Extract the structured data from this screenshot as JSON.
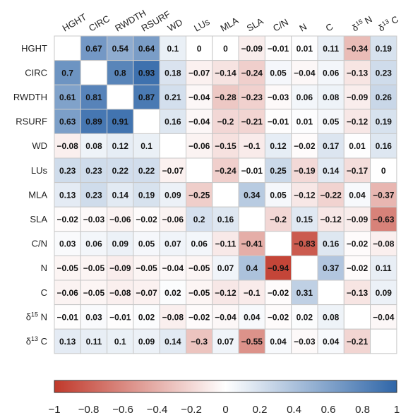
{
  "chart_data": {
    "type": "heatmap",
    "title": "",
    "variables": [
      "HGHT",
      "CIRC",
      "RWDTH",
      "RSURF",
      "WD",
      "LUs",
      "MLA",
      "SLA",
      "C/N",
      "N",
      "C",
      "δ15 N",
      "δ13 C"
    ],
    "values": [
      [
        null,
        0.67,
        0.54,
        0.64,
        0.1,
        0,
        0,
        -0.09,
        -0.01,
        0.01,
        0.11,
        -0.34,
        0.19
      ],
      [
        0.7,
        null,
        0.8,
        0.93,
        0.18,
        -0.07,
        -0.14,
        -0.24,
        0.05,
        -0.04,
        0.06,
        -0.13,
        0.23
      ],
      [
        0.61,
        0.81,
        null,
        0.87,
        0.21,
        -0.04,
        -0.28,
        -0.23,
        -0.03,
        0.06,
        0.08,
        -0.09,
        0.26
      ],
      [
        0.63,
        0.89,
        0.91,
        null,
        0.16,
        -0.04,
        -0.2,
        -0.21,
        -0.01,
        0.01,
        0.05,
        -0.12,
        0.19
      ],
      [
        -0.08,
        0.08,
        0.12,
        0.1,
        null,
        -0.06,
        -0.15,
        -0.1,
        0.12,
        -0.02,
        0.17,
        0.01,
        0.16
      ],
      [
        0.23,
        0.23,
        0.22,
        0.22,
        -0.07,
        null,
        -0.24,
        -0.01,
        0.25,
        -0.19,
        0.14,
        -0.17,
        0
      ],
      [
        0.13,
        0.23,
        0.14,
        0.19,
        0.09,
        -0.25,
        null,
        0.34,
        0.05,
        -0.12,
        -0.22,
        0.04,
        -0.37
      ],
      [
        -0.02,
        -0.03,
        -0.06,
        -0.02,
        -0.06,
        0.2,
        0.16,
        null,
        -0.2,
        0.15,
        -0.12,
        -0.09,
        -0.63
      ],
      [
        0.03,
        0.06,
        0.09,
        0.05,
        0.07,
        0.06,
        -0.11,
        -0.41,
        null,
        -0.83,
        0.16,
        -0.02,
        -0.08
      ],
      [
        -0.05,
        -0.05,
        -0.09,
        -0.05,
        -0.04,
        -0.05,
        0.07,
        0.4,
        -0.94,
        null,
        0.37,
        -0.02,
        0.11
      ],
      [
        -0.06,
        -0.05,
        -0.08,
        -0.07,
        0.02,
        -0.05,
        -0.12,
        -0.1,
        -0.02,
        0.31,
        null,
        -0.13,
        0.09
      ],
      [
        -0.01,
        0.03,
        -0.01,
        0.02,
        -0.08,
        -0.02,
        -0.04,
        0.04,
        -0.02,
        0.02,
        0.08,
        null,
        -0.04
      ],
      [
        0.13,
        0.11,
        0.1,
        0.09,
        0.14,
        -0.3,
        0.07,
        -0.55,
        0.04,
        -0.03,
        0.04,
        -0.21,
        null
      ]
    ],
    "colorbar": {
      "range": [
        -1,
        1
      ],
      "ticks": [
        -1,
        -0.8,
        -0.6,
        -0.4,
        -0.2,
        0,
        0.2,
        0.4,
        0.6,
        0.8,
        1
      ],
      "colors": {
        "negative": "#c0392b",
        "neutral": "#ffffff",
        "positive": "#2f66a8"
      },
      "placement": "bottom"
    },
    "grid": true
  }
}
